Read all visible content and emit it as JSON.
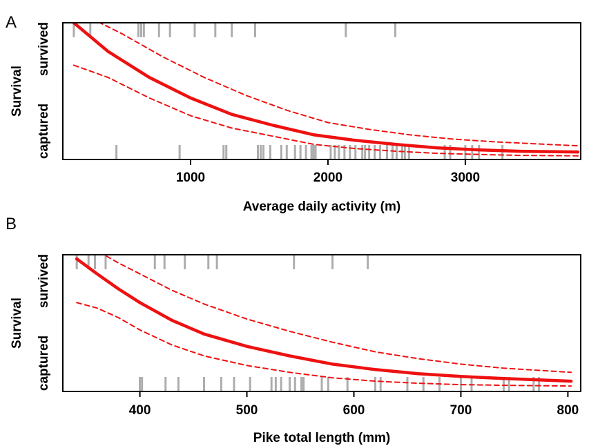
{
  "chart_data": [
    {
      "panel": "A",
      "type": "line",
      "xlabel": "Average daily activity (m)",
      "ylabel": "Survival",
      "y_categories": [
        "captured",
        "survived"
      ],
      "xlim": [
        70,
        3840
      ],
      "ylim": [
        0,
        1
      ],
      "x_ticks": [
        "1000",
        "2000",
        "3000"
      ],
      "x_tick_values": [
        1000,
        2000,
        3000
      ],
      "grid": false,
      "legend": "none",
      "colors": {
        "fit": "#ee1111",
        "rug": "#999999"
      },
      "series": [
        {
          "kind": "fit",
          "style": "solid",
          "x": [
            150,
            400,
            700,
            1000,
            1300,
            1600,
            1900,
            2200,
            2500,
            2800,
            3100,
            3400,
            3820
          ],
          "y": [
            1.0,
            0.79,
            0.6,
            0.45,
            0.33,
            0.25,
            0.18,
            0.14,
            0.11,
            0.085,
            0.07,
            0.06,
            0.055
          ]
        },
        {
          "kind": "ci_upper",
          "style": "dashed",
          "x": [
            150,
            300,
            500,
            800,
            1100,
            1400,
            1700,
            2000,
            2300,
            2600,
            2900,
            3200,
            3500,
            3820
          ],
          "y": [
            1.03,
            1.02,
            0.92,
            0.75,
            0.6,
            0.47,
            0.36,
            0.27,
            0.22,
            0.18,
            0.15,
            0.13,
            0.115,
            0.1
          ]
        },
        {
          "kind": "ci_lower",
          "style": "dashed",
          "x": [
            150,
            400,
            700,
            1000,
            1300,
            1600,
            1900,
            2200,
            2500,
            2800,
            3100,
            3400,
            3820
          ],
          "y": [
            0.69,
            0.6,
            0.45,
            0.32,
            0.23,
            0.17,
            0.11,
            0.08,
            0.06,
            0.045,
            0.037,
            0.03,
            0.027
          ]
        }
      ],
      "rug_survived": [
        150,
        270,
        620,
        640,
        660,
        770,
        850,
        1030,
        1180,
        1300,
        1470,
        2130,
        2490
      ],
      "rug_captured": [
        460,
        920,
        1240,
        1260,
        1490,
        1510,
        1530,
        1580,
        1660,
        1700,
        1760,
        1800,
        1840,
        1880,
        1895,
        1910,
        2020,
        2050,
        2080,
        2120,
        2160,
        2200,
        2250,
        2270,
        2300,
        2340,
        2380,
        2430,
        2470,
        2500,
        2540,
        2560,
        2590,
        2850,
        2890,
        3000,
        3050,
        3100,
        3270
      ]
    },
    {
      "panel": "B",
      "type": "line",
      "xlabel": "Pike total length (mm)",
      "ylabel": "Survival",
      "y_categories": [
        "captured",
        "survived"
      ],
      "xlim": [
        328,
        812
      ],
      "ylim": [
        0,
        1
      ],
      "x_ticks": [
        "400",
        "500",
        "600",
        "700",
        "800"
      ],
      "x_tick_values": [
        400,
        500,
        600,
        700,
        800
      ],
      "grid": false,
      "legend": "none",
      "colors": {
        "fit": "#ee1111",
        "rug": "#999999"
      },
      "series": [
        {
          "kind": "fit",
          "style": "solid",
          "x": [
            341,
            360,
            380,
            400,
            430,
            460,
            500,
            540,
            580,
            620,
            660,
            700,
            740,
            803
          ],
          "y": [
            0.97,
            0.86,
            0.75,
            0.65,
            0.52,
            0.42,
            0.33,
            0.26,
            0.2,
            0.16,
            0.13,
            0.11,
            0.095,
            0.075
          ]
        },
        {
          "kind": "ci_upper",
          "style": "dashed",
          "x": [
            362,
            380,
            400,
            430,
            460,
            500,
            540,
            580,
            620,
            660,
            700,
            740,
            803
          ],
          "y": [
            1.02,
            0.94,
            0.86,
            0.74,
            0.64,
            0.53,
            0.44,
            0.36,
            0.29,
            0.24,
            0.2,
            0.17,
            0.14
          ]
        },
        {
          "kind": "ci_lower",
          "style": "dashed",
          "x": [
            341,
            360,
            380,
            400,
            430,
            460,
            500,
            540,
            580,
            620,
            660,
            700,
            740,
            803
          ],
          "y": [
            0.65,
            0.61,
            0.54,
            0.45,
            0.34,
            0.26,
            0.19,
            0.14,
            0.1,
            0.075,
            0.06,
            0.05,
            0.045,
            0.04
          ]
        }
      ],
      "rug_survived": [
        341,
        352,
        358,
        368,
        414,
        423,
        442,
        464,
        472,
        544,
        580,
        613
      ],
      "rug_captured": [
        400,
        402,
        424,
        436,
        460,
        476,
        488,
        503,
        523,
        527,
        532,
        540,
        545,
        551,
        553,
        570,
        576,
        594,
        620,
        625,
        650,
        665,
        680,
        700,
        710,
        740,
        745,
        768,
        773
      ]
    }
  ]
}
